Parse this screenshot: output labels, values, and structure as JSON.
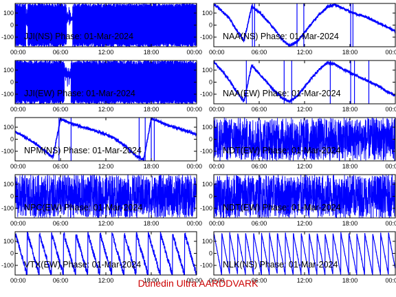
{
  "footer_text": "Dunedin Ultra AARDDVARK",
  "colors": {
    "trace": "#0000ff",
    "axes": "#000000",
    "footer": "#cc0000"
  },
  "chart_data": [
    {
      "type": "line",
      "title": "JJI(NS) Phase: 01-Mar-2024",
      "ylim": [
        -180,
        180
      ],
      "yticks": [
        "100",
        "0",
        "-100"
      ],
      "xlim": [
        0,
        24
      ],
      "xticks": [
        "00:00",
        "06:00",
        "12:00",
        "18:00",
        "00:00"
      ],
      "pattern": "dense",
      "gaps": [
        [
          1.4,
          1.7
        ],
        [
          6.8,
          7.6
        ]
      ]
    },
    {
      "type": "line",
      "title": "NAA(NS) Phase: 01-Mar-2024",
      "ylim": [
        -180,
        180
      ],
      "yticks": [
        "100",
        "0",
        "-100"
      ],
      "xlim": [
        0,
        24
      ],
      "xticks": [
        "00:00",
        "06:00",
        "12:00",
        "18:00",
        "00:00"
      ],
      "pattern": "sparse",
      "x": [
        0,
        1,
        2,
        3,
        4,
        5,
        6,
        7,
        8,
        9,
        10,
        11,
        12,
        13,
        14,
        15,
        16,
        17,
        18,
        19,
        20,
        21,
        22,
        23,
        24
      ],
      "y": [
        175,
        120,
        60,
        -40,
        -130,
        150,
        110,
        40,
        -30,
        -120,
        -170,
        -140,
        -60,
        20,
        90,
        150,
        170,
        140,
        110,
        90,
        70,
        40,
        10,
        -20,
        -50
      ],
      "spikes": [
        5.1,
        5.4,
        11.0,
        11.9,
        18.1,
        18.4
      ]
    },
    {
      "type": "line",
      "title": "JJI(EW) Phase: 01-Mar-2024",
      "ylim": [
        -180,
        180
      ],
      "yticks": [
        "100",
        "0",
        "-100"
      ],
      "xlim": [
        0,
        24
      ],
      "xticks": [
        "00:00",
        "06:00",
        "12:00",
        "18:00",
        "00:00"
      ],
      "pattern": "dense",
      "gaps": [
        [
          6.5,
          7.4
        ]
      ]
    },
    {
      "type": "line",
      "title": "NAA(EW) Phase: 01-Mar-2024",
      "ylim": [
        -180,
        180
      ],
      "yticks": [
        "100",
        "0",
        "-100"
      ],
      "xlim": [
        0,
        24
      ],
      "xticks": [
        "00:00",
        "06:00",
        "12:00",
        "18:00",
        "00:00"
      ],
      "pattern": "sparse",
      "x": [
        0,
        1,
        2,
        3,
        4,
        5,
        6,
        7,
        8,
        9,
        10,
        11,
        12,
        13,
        14,
        15,
        16,
        17,
        18,
        19,
        20,
        21,
        22,
        23,
        24
      ],
      "y": [
        170,
        100,
        20,
        -80,
        -160,
        140,
        70,
        0,
        -70,
        -130,
        -160,
        -120,
        -40,
        40,
        110,
        160,
        150,
        110,
        80,
        50,
        20,
        -10,
        -40,
        -80,
        -110
      ],
      "spikes": [
        4.3,
        9.3,
        10.3,
        15.4,
        18.1,
        18.6,
        20.5
      ]
    },
    {
      "type": "line",
      "title": "NPM(NS) Phase: 01-Mar-2024",
      "ylim": [
        -180,
        180
      ],
      "yticks": [
        "100",
        "0",
        "-100"
      ],
      "xlim": [
        0,
        24
      ],
      "xticks": [
        "00:00",
        "06:00",
        "12:00",
        "18:00",
        "00:00"
      ],
      "pattern": "sparse",
      "x": [
        0,
        1,
        2,
        3,
        4,
        5,
        6,
        7,
        8,
        9,
        10,
        11,
        12,
        13,
        14,
        15,
        16,
        17,
        18,
        19,
        20,
        21,
        22,
        23,
        24
      ],
      "y": [
        60,
        30,
        -10,
        -50,
        -100,
        -150,
        170,
        140,
        120,
        100,
        80,
        60,
        40,
        10,
        -30,
        -80,
        -140,
        -170,
        170,
        150,
        120,
        100,
        80,
        60,
        40
      ],
      "spikes": [
        5.8,
        7.4,
        16.4,
        17.2,
        18.0,
        18.4
      ]
    },
    {
      "type": "line",
      "title": "NDT(EW) Phase: 01-Mar-2024",
      "ylim": [
        -180,
        180
      ],
      "yticks": [
        "100",
        "0",
        "-100"
      ],
      "xlim": [
        0,
        24
      ],
      "xticks": [
        "00:00",
        "06:00",
        "12:00",
        "18:00",
        "00:00"
      ],
      "pattern": "noise"
    },
    {
      "type": "line",
      "title": "NPC(EW) Phase: 01-Mar-2024",
      "ylim": [
        -180,
        180
      ],
      "yticks": [
        "100",
        "0",
        "-100"
      ],
      "xlim": [
        0,
        24
      ],
      "xticks": [
        "00:00",
        "06:00",
        "12:00",
        "18:00",
        "00:00"
      ],
      "pattern": "noise"
    },
    {
      "type": "line",
      "title": "NDT(EW) Phase: 01-Mar-2024",
      "ylim": [
        -180,
        180
      ],
      "yticks": [
        "100",
        "0",
        "-100"
      ],
      "xlim": [
        0,
        24
      ],
      "xticks": [
        "00:00",
        "06:00",
        "12:00",
        "18:00",
        "00:00"
      ],
      "pattern": "noise"
    },
    {
      "type": "line",
      "title": "VTX(EW) Phase: 01-Mar-2024",
      "ylim": [
        -180,
        180
      ],
      "yticks": [
        "100",
        "0",
        "-100"
      ],
      "xlim": [
        0,
        24
      ],
      "xticks": [
        "00:00",
        "06:00",
        "12:00",
        "18:00",
        "00:00"
      ],
      "pattern": "sawtooth",
      "sawtooth_period_hours": 1.6
    },
    {
      "type": "line",
      "title": "NLK(NS) Phase: 01-Mar-2024",
      "ylim": [
        -180,
        180
      ],
      "yticks": [
        "100",
        "0",
        "-100"
      ],
      "xlim": [
        0,
        24
      ],
      "xticks": [
        "00:00",
        "06:00",
        "12:00",
        "18:00",
        "00:00"
      ],
      "pattern": "sawtooth",
      "sawtooth_period_hours": 1.05
    }
  ]
}
